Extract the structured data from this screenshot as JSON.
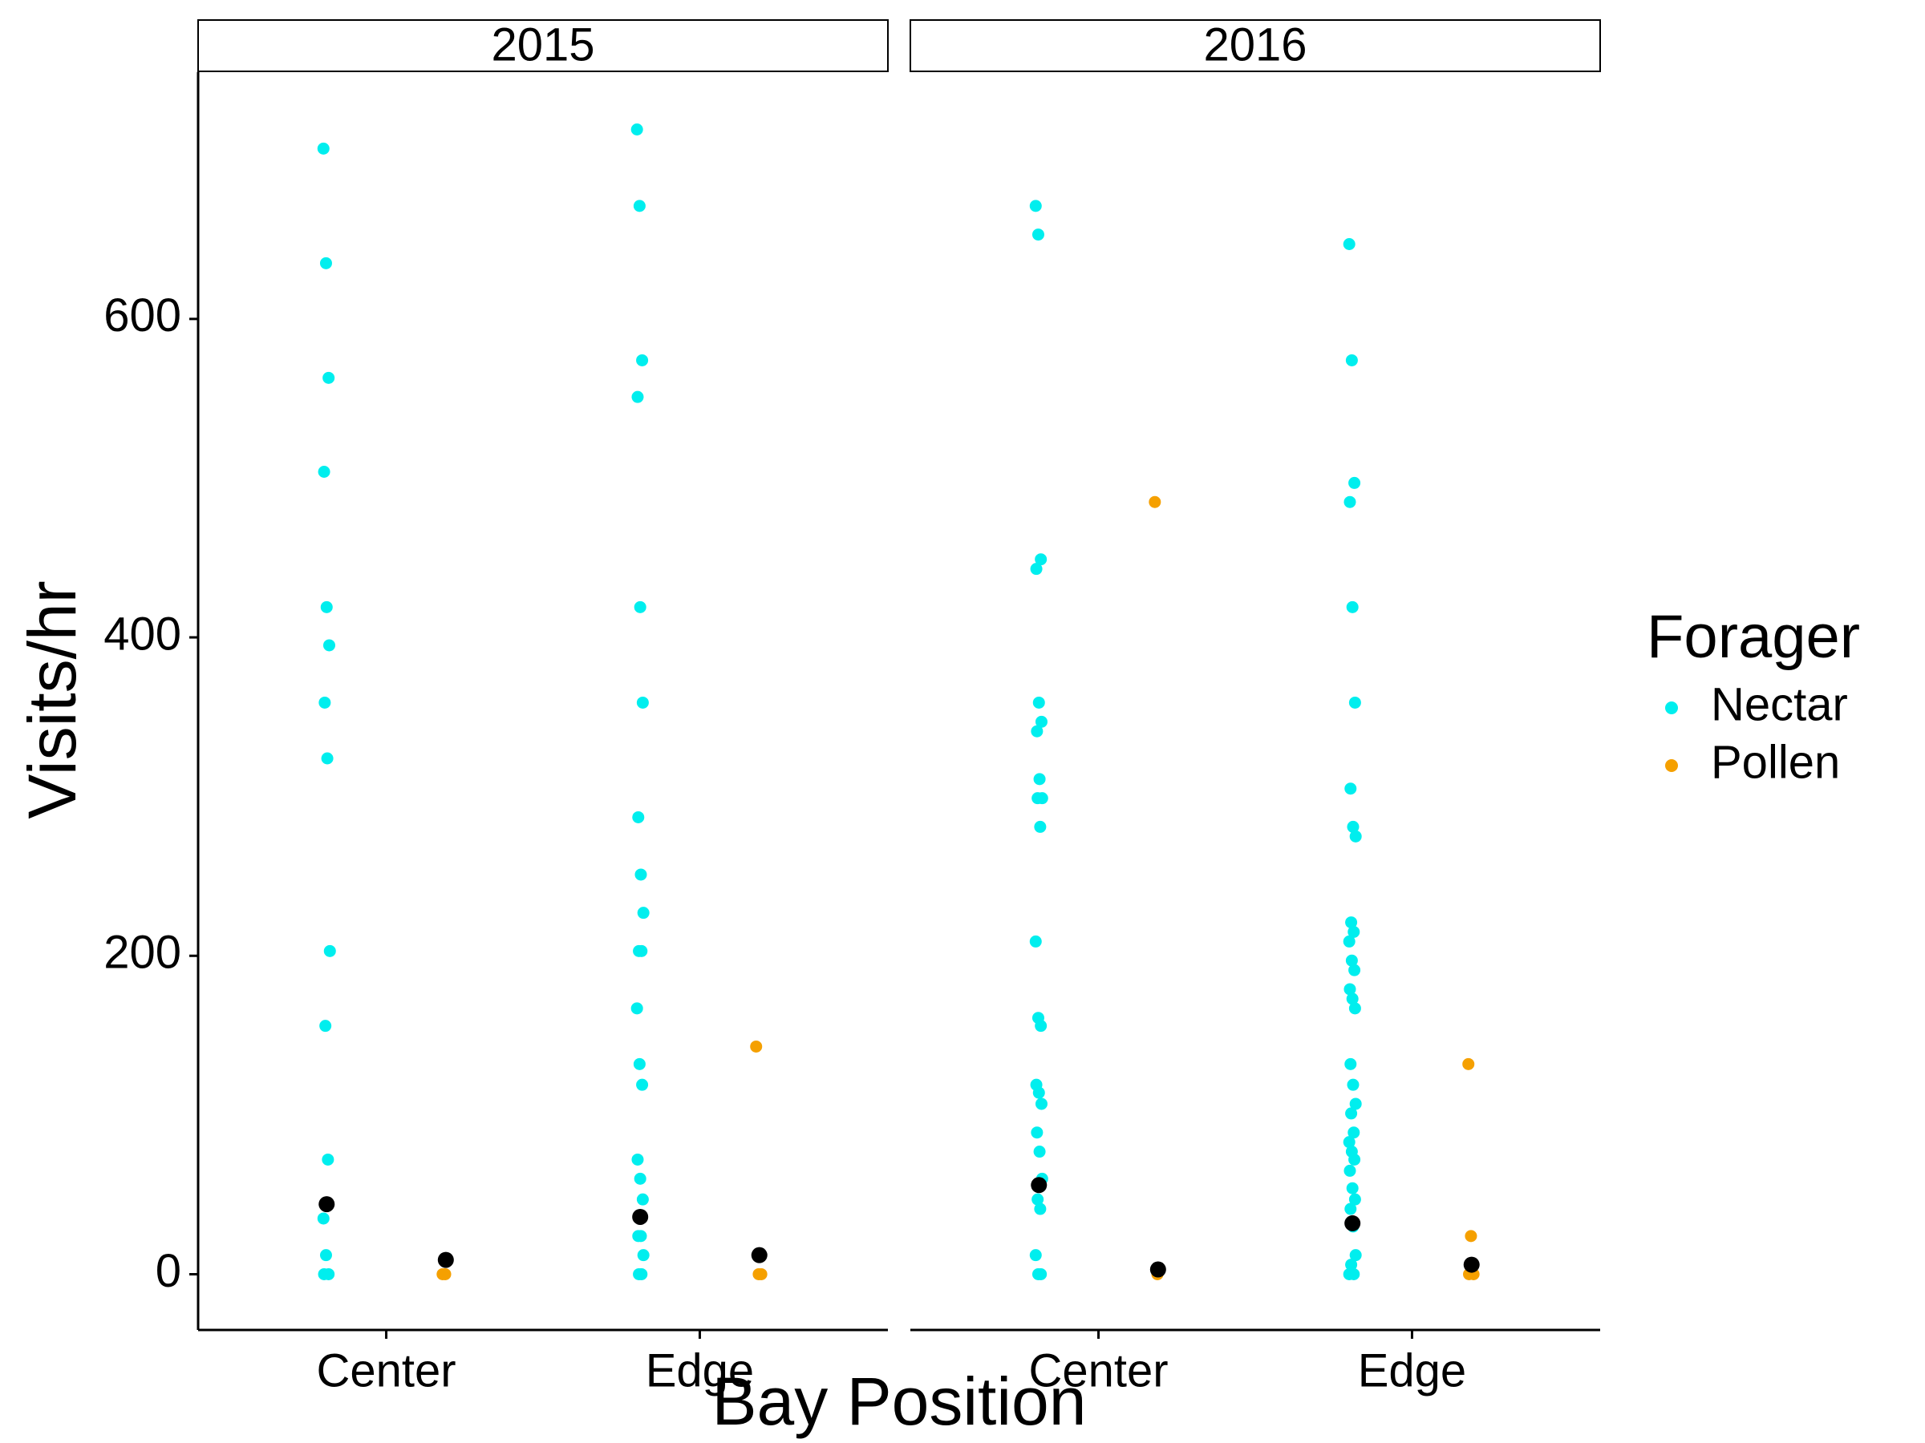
{
  "chart_data": {
    "type": "strip",
    "xlabel": "Bay Position",
    "ylabel": "Visits/hr",
    "categories": [
      "Center",
      "Edge"
    ],
    "legend_title": "Forager",
    "series": [
      {
        "name": "Nectar",
        "color": "#00eeee"
      },
      {
        "name": "Pollen",
        "color": "#f5a000"
      }
    ],
    "mean_color": "#000000",
    "ylim": [
      -35,
      755
    ],
    "yticks": [
      0,
      200,
      400,
      600
    ],
    "panels": [
      {
        "title": "2015",
        "values": [
          [
            [
              707,
              635,
              563,
              504,
              419,
              395,
              359,
              324,
              203,
              156,
              72,
              35,
              12,
              0,
              0
            ],
            [
              0,
              0
            ]
          ],
          [
            [
              719,
              671,
              574,
              551,
              419,
              359,
              287,
              251,
              227,
              203,
              203,
              167,
              132,
              119,
              72,
              60,
              47,
              24,
              24,
              12,
              0,
              0
            ],
            [
              143,
              0,
              0
            ]
          ]
        ],
        "means": [
          [
            44,
            9
          ],
          [
            36,
            12
          ]
        ]
      },
      {
        "title": "2016",
        "values": [
          [
            [
              671,
              653,
              449,
              443,
              359,
              347,
              341,
              311,
              299,
              299,
              281,
              209,
              161,
              156,
              119,
              114,
              107,
              89,
              77,
              60,
              47,
              41,
              12,
              0,
              0
            ],
            [
              485,
              0
            ]
          ],
          [
            [
              647,
              574,
              497,
              485,
              419,
              359,
              305,
              281,
              275,
              221,
              215,
              209,
              197,
              191,
              179,
              173,
              167,
              132,
              119,
              107,
              101,
              89,
              83,
              77,
              72,
              65,
              54,
              47,
              41,
              30,
              12,
              6,
              0,
              0
            ],
            [
              132,
              24,
              0,
              0
            ]
          ]
        ],
        "means": [
          [
            56,
            3
          ],
          [
            32,
            6
          ]
        ]
      }
    ]
  }
}
